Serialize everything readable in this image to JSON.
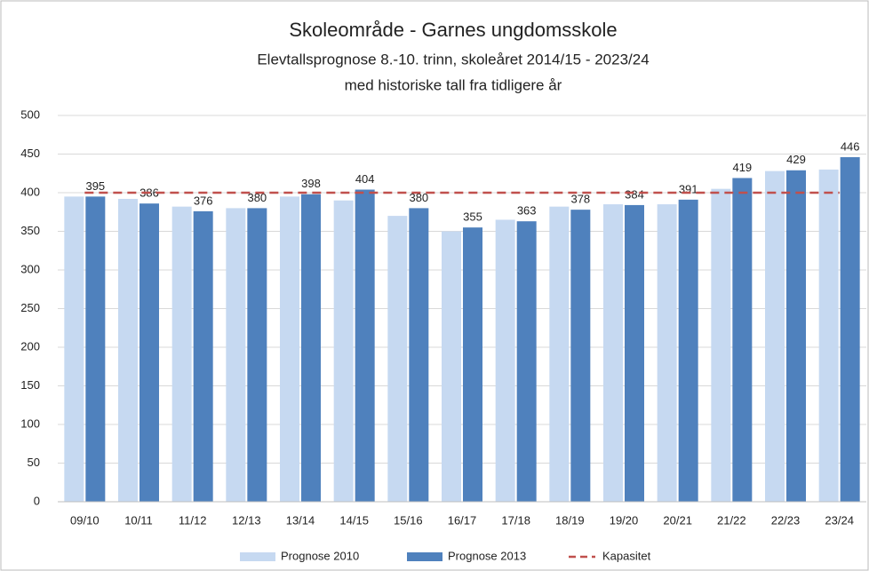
{
  "chart_data": {
    "type": "bar",
    "title": "Skoleområde - Garnes ungdomsskole",
    "subtitle": "Elevtallsprognose 8.-10. trinn, skoleåret 2014/15 - 2023/24",
    "subtitle2": "med historiske tall fra tidligere år",
    "categories": [
      "09/10",
      "10/11",
      "11/12",
      "12/13",
      "13/14",
      "14/15",
      "15/16",
      "16/17",
      "17/18",
      "18/19",
      "19/20",
      "20/21",
      "21/22",
      "22/23",
      "23/24"
    ],
    "series": [
      {
        "name": "Prognose 2010",
        "type": "bar",
        "color": "#c6d9f1",
        "labels": false,
        "values": [
          395,
          392,
          382,
          380,
          395,
          390,
          370,
          350,
          365,
          382,
          385,
          385,
          405,
          428,
          430
        ]
      },
      {
        "name": "Prognose 2013",
        "type": "bar",
        "color": "#4f81bd",
        "labels": true,
        "values": [
          395,
          386,
          376,
          380,
          398,
          404,
          380,
          355,
          363,
          378,
          384,
          391,
          419,
          429,
          446
        ]
      },
      {
        "name": "Kapasitet",
        "type": "line",
        "color": "#c0504d",
        "dashed": true,
        "values": [
          400,
          400,
          400,
          400,
          400,
          400,
          400,
          400,
          400,
          400,
          400,
          400,
          400,
          400,
          400
        ]
      }
    ],
    "ylim": [
      0,
      500
    ],
    "yticks": [
      0,
      50,
      100,
      150,
      200,
      250,
      300,
      350,
      400,
      450,
      500
    ],
    "grid": true,
    "legend": "bottom"
  }
}
